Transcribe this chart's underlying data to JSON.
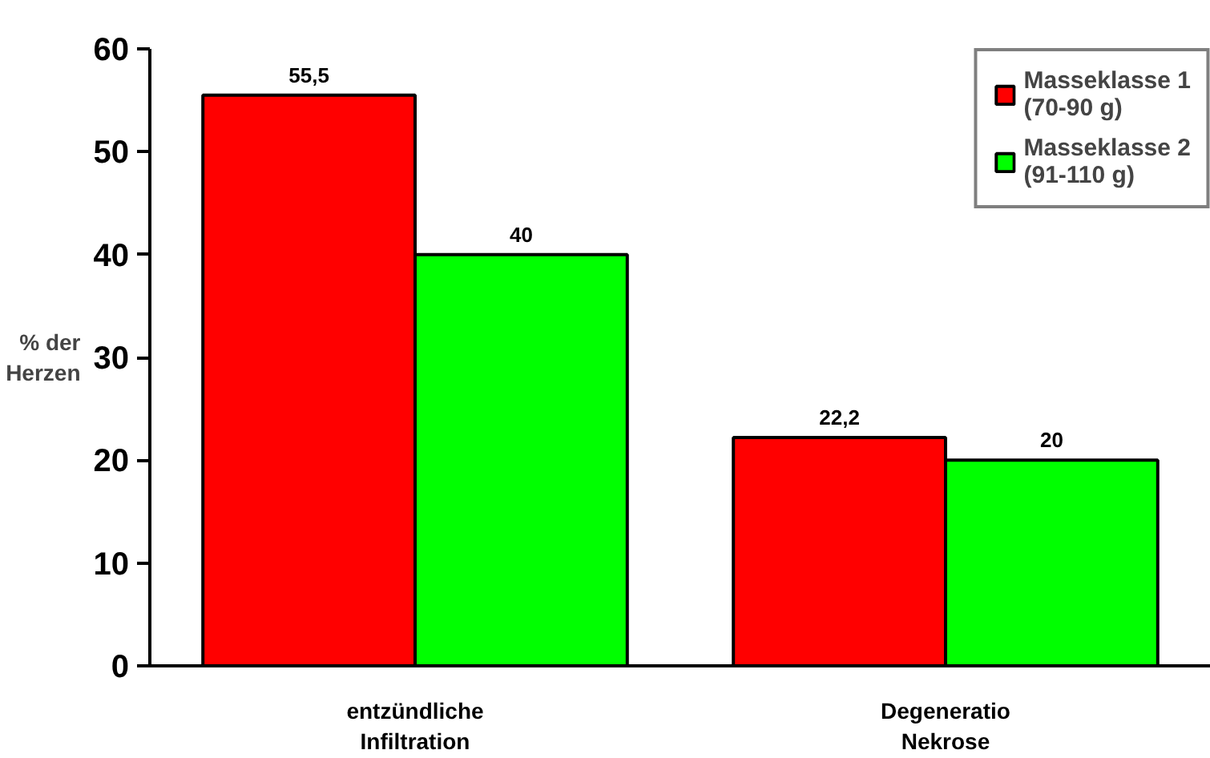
{
  "chart_data": {
    "type": "bar",
    "ylabel": "% der\nHerzen",
    "categories": [
      "entzündliche\nInfiltration",
      "Degeneratio\nNekrose"
    ],
    "series": [
      {
        "name": "Masseklasse 1\n(70-90 g)",
        "color": "#ff0000",
        "values": [
          55.5,
          22.2
        ],
        "value_labels": [
          "55,5",
          "22,2"
        ]
      },
      {
        "name": "Masseklasse 2\n(91-110 g)",
        "color": "#00ff00",
        "values": [
          40,
          20
        ],
        "value_labels": [
          "40",
          "20"
        ]
      }
    ],
    "ylim": [
      0,
      60
    ],
    "yticks": [
      0,
      10,
      20,
      30,
      40,
      50,
      60
    ],
    "grid": false,
    "legend": "top right"
  }
}
